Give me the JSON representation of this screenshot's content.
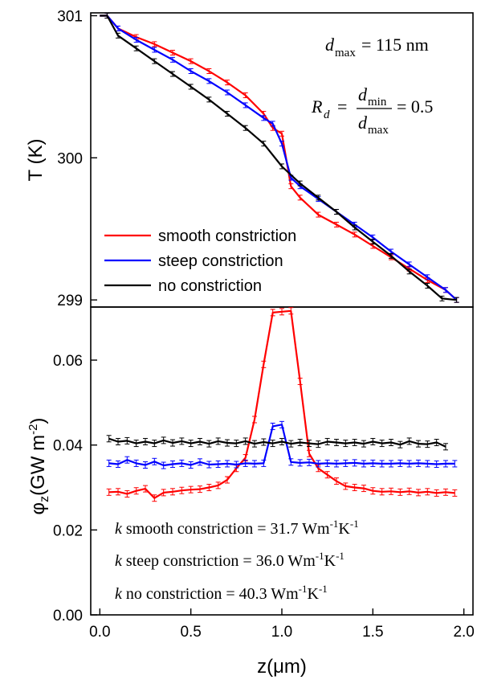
{
  "chart_data": [
    {
      "type": "line",
      "panel": "top",
      "xlabel": "",
      "ylabel": "T (K)",
      "xlim": [
        -0.05,
        2.05
      ],
      "ylim": [
        298.95,
        301.02
      ],
      "yticks": [
        "301",
        "300",
        "299"
      ],
      "ytick_values": [
        301,
        300,
        299
      ],
      "legend": [
        {
          "name": "smooth constriction",
          "color": "#ff0000"
        },
        {
          "name": "steep constriction",
          "color": "#0000ff"
        },
        {
          "name": "no constriction",
          "color": "#000000"
        }
      ],
      "annotation_dmax": {
        "symbol": "d",
        "sub": "max",
        "value": "= 115 nm"
      },
      "annotation_rd": {
        "symbol": "R",
        "sub": "d",
        "eq": "=",
        "num": "d",
        "num_sub": "min",
        "den": "d",
        "den_sub": "max",
        "value": "= 0.5"
      },
      "series": [
        {
          "name": "smooth constriction",
          "color": "#ff0000",
          "x": [
            0.0,
            0.04,
            0.1,
            0.2,
            0.3,
            0.4,
            0.5,
            0.6,
            0.7,
            0.8,
            0.9,
            0.95,
            1.0,
            1.05,
            1.1,
            1.2,
            1.3,
            1.4,
            1.5,
            1.6,
            1.7,
            1.8,
            1.9,
            1.96
          ],
          "y": [
            301.0,
            301.0,
            300.91,
            300.85,
            300.8,
            300.74,
            300.68,
            300.61,
            300.53,
            300.44,
            300.31,
            300.21,
            300.17,
            299.8,
            299.72,
            299.6,
            299.53,
            299.46,
            299.38,
            299.3,
            299.22,
            299.14,
            299.07,
            299.0
          ]
        },
        {
          "name": "steep constriction",
          "color": "#0000ff",
          "x": [
            0.0,
            0.04,
            0.1,
            0.2,
            0.3,
            0.4,
            0.5,
            0.6,
            0.7,
            0.8,
            0.9,
            0.95,
            1.0,
            1.05,
            1.1,
            1.2,
            1.3,
            1.4,
            1.5,
            1.6,
            1.7,
            1.8,
            1.9,
            1.96
          ],
          "y": [
            301.0,
            301.0,
            300.91,
            300.83,
            300.76,
            300.69,
            300.61,
            300.54,
            300.46,
            300.37,
            300.28,
            300.24,
            300.1,
            299.86,
            299.8,
            299.71,
            299.62,
            299.53,
            299.44,
            299.34,
            299.25,
            299.16,
            299.07,
            299.0
          ]
        },
        {
          "name": "no constriction",
          "color": "#000000",
          "x": [
            0.0,
            0.04,
            0.1,
            0.2,
            0.3,
            0.4,
            0.5,
            0.6,
            0.7,
            0.8,
            0.9,
            1.0,
            1.1,
            1.2,
            1.3,
            1.4,
            1.5,
            1.6,
            1.7,
            1.8,
            1.88,
            1.96
          ],
          "y": [
            301.0,
            301.0,
            300.86,
            300.77,
            300.68,
            300.59,
            300.5,
            300.41,
            300.31,
            300.21,
            300.1,
            299.94,
            299.82,
            299.72,
            299.62,
            299.51,
            299.41,
            299.31,
            299.2,
            299.1,
            299.01,
            299.0
          ]
        }
      ]
    },
    {
      "type": "line",
      "panel": "bottom",
      "xlabel": "z(μm)",
      "ylabel": "φz(GW m-2)",
      "ylabel_parts": {
        "main": "φ",
        "sub": "z",
        "unit": "(GW m",
        "sup": "-2",
        "close": ")"
      },
      "xlim": [
        -0.05,
        2.05
      ],
      "ylim": [
        0.0,
        0.0725
      ],
      "xticks": [
        "0.0",
        "0.5",
        "1.0",
        "1.5",
        "2.0"
      ],
      "xtick_values": [
        0.0,
        0.5,
        1.0,
        1.5,
        2.0
      ],
      "yticks": [
        "0.00",
        "0.02",
        "0.04",
        "0.06"
      ],
      "ytick_values": [
        0.0,
        0.02,
        0.04,
        0.06
      ],
      "k_labels": [
        {
          "k": "k",
          "text": " smooth constriction = 31.7 Wm",
          "sup1": "-1",
          "mid": "K",
          "sup2": "-1"
        },
        {
          "k": "k",
          "text": " steep constriction = 36.0 Wm",
          "sup1": "-1",
          "mid": "K",
          "sup2": "-1"
        },
        {
          "k": "k",
          "text": " no constriction = 40.3 Wm",
          "sup1": "-1",
          "mid": "K",
          "sup2": "-1"
        }
      ],
      "series": [
        {
          "name": "smooth constriction",
          "color": "#ff0000",
          "x": [
            0.05,
            0.1,
            0.15,
            0.2,
            0.25,
            0.3,
            0.35,
            0.4,
            0.45,
            0.5,
            0.55,
            0.6,
            0.65,
            0.7,
            0.75,
            0.8,
            0.85,
            0.9,
            0.95,
            1.0,
            1.05,
            1.1,
            1.15,
            1.2,
            1.25,
            1.3,
            1.35,
            1.4,
            1.45,
            1.5,
            1.55,
            1.6,
            1.65,
            1.7,
            1.75,
            1.8,
            1.85,
            1.9,
            1.95
          ],
          "y": [
            0.0289,
            0.029,
            0.0285,
            0.0292,
            0.0297,
            0.0275,
            0.0288,
            0.029,
            0.0293,
            0.0295,
            0.0296,
            0.03,
            0.0305,
            0.0318,
            0.0345,
            0.037,
            0.046,
            0.059,
            0.0712,
            0.0714,
            0.0716,
            0.055,
            0.038,
            0.0345,
            0.033,
            0.0315,
            0.0303,
            0.03,
            0.0298,
            0.0292,
            0.029,
            0.0291,
            0.0289,
            0.0291,
            0.0288,
            0.029,
            0.0287,
            0.0289,
            0.0287
          ]
        },
        {
          "name": "steep constriction",
          "color": "#0000ff",
          "x": [
            0.05,
            0.1,
            0.15,
            0.2,
            0.25,
            0.3,
            0.35,
            0.4,
            0.45,
            0.5,
            0.55,
            0.6,
            0.65,
            0.7,
            0.75,
            0.8,
            0.85,
            0.9,
            0.95,
            1.0,
            1.05,
            1.1,
            1.15,
            1.2,
            1.25,
            1.3,
            1.35,
            1.4,
            1.45,
            1.5,
            1.55,
            1.6,
            1.65,
            1.7,
            1.75,
            1.8,
            1.85,
            1.9,
            1.95
          ],
          "y": [
            0.0357,
            0.0355,
            0.0365,
            0.0357,
            0.0353,
            0.0361,
            0.0352,
            0.0355,
            0.0357,
            0.0353,
            0.036,
            0.0354,
            0.0355,
            0.0356,
            0.0354,
            0.0357,
            0.0356,
            0.0357,
            0.0444,
            0.0448,
            0.036,
            0.0358,
            0.0359,
            0.0356,
            0.0357,
            0.0356,
            0.0357,
            0.0358,
            0.0356,
            0.0357,
            0.0356,
            0.0356,
            0.0357,
            0.0356,
            0.0357,
            0.0356,
            0.0355,
            0.0356,
            0.0356
          ]
        },
        {
          "name": "no constriction",
          "color": "#000000",
          "x": [
            0.05,
            0.1,
            0.15,
            0.2,
            0.25,
            0.3,
            0.35,
            0.4,
            0.45,
            0.5,
            0.55,
            0.6,
            0.65,
            0.7,
            0.75,
            0.8,
            0.85,
            0.9,
            0.95,
            1.0,
            1.05,
            1.1,
            1.15,
            1.2,
            1.25,
            1.3,
            1.35,
            1.4,
            1.45,
            1.5,
            1.55,
            1.6,
            1.65,
            1.7,
            1.75,
            1.8,
            1.85,
            1.9
          ],
          "y": [
            0.0415,
            0.0408,
            0.041,
            0.0404,
            0.0408,
            0.0404,
            0.0411,
            0.0405,
            0.0409,
            0.0404,
            0.0408,
            0.0403,
            0.0409,
            0.0405,
            0.0404,
            0.0409,
            0.0403,
            0.0407,
            0.0404,
            0.0408,
            0.0403,
            0.0406,
            0.0404,
            0.0402,
            0.0408,
            0.0406,
            0.0404,
            0.0406,
            0.0403,
            0.0408,
            0.0404,
            0.0406,
            0.0401,
            0.0409,
            0.0403,
            0.0402,
            0.0406,
            0.0396
          ]
        }
      ]
    }
  ]
}
